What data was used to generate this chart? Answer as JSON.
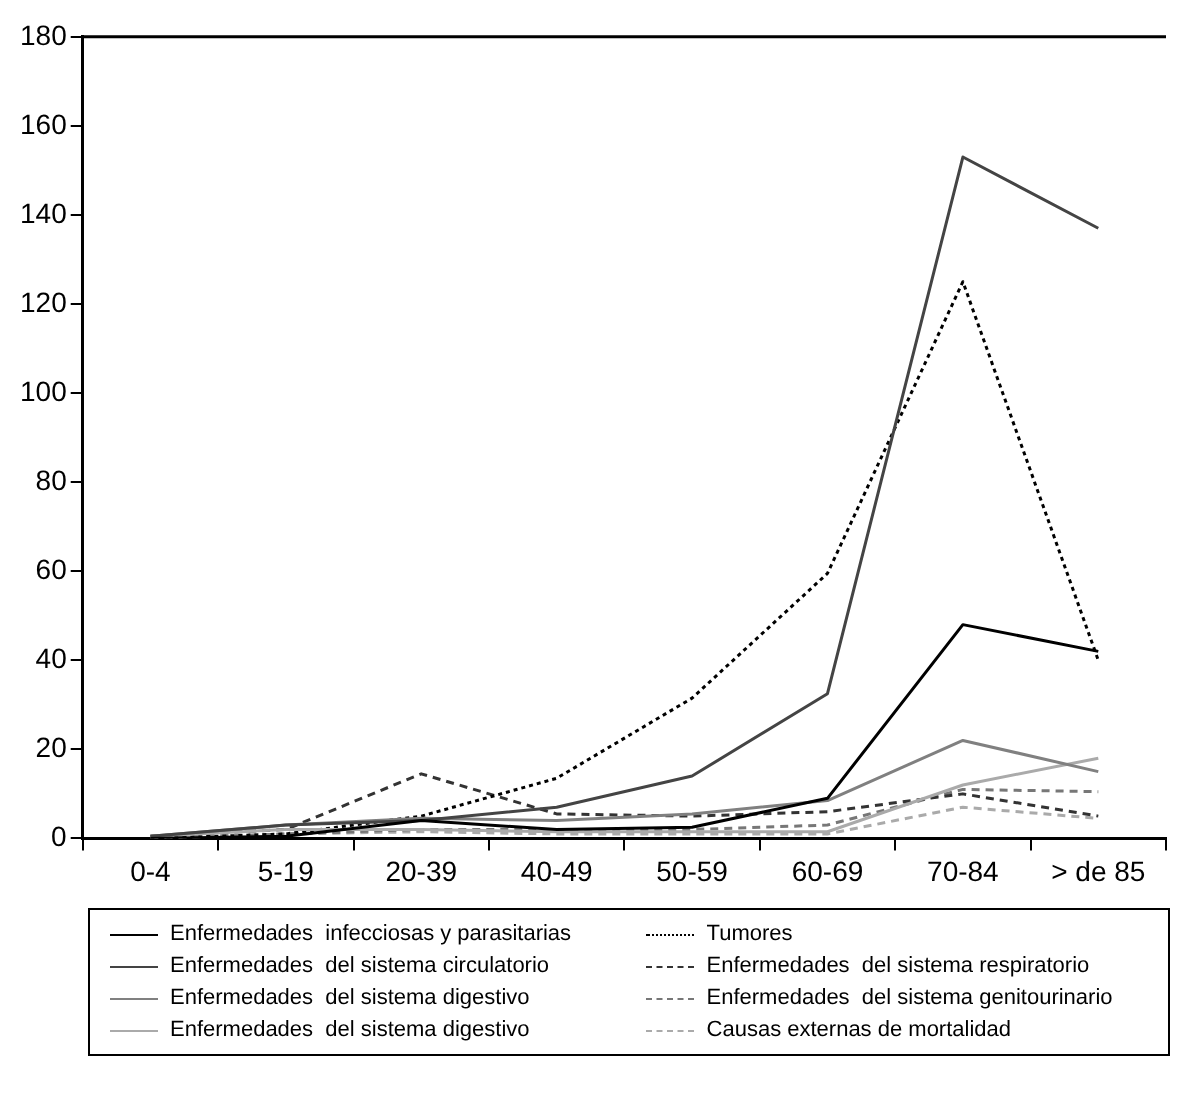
{
  "chart_data": {
    "type": "line",
    "categories": [
      "0-4",
      "5-19",
      "20-39",
      "40-49",
      "50-59",
      "60-69",
      "70-84",
      "> de 85"
    ],
    "ylim": [
      0,
      180
    ],
    "yticks": [
      0,
      20,
      40,
      60,
      80,
      100,
      120,
      140,
      160,
      180
    ],
    "grid": false,
    "legend": "bottom",
    "marker": "none",
    "series": [
      {
        "name": "Enfermedades  infecciosas y parasitarias",
        "color": "#000000",
        "line_style": "solid",
        "values": [
          0,
          0.5,
          4,
          2,
          2.5,
          9,
          48,
          42
        ]
      },
      {
        "name": "Enfermedades  del sistema circulatorio",
        "color": "#444444",
        "line_style": "solid",
        "values": [
          0.5,
          3,
          4,
          7,
          14,
          32.5,
          153,
          137
        ]
      },
      {
        "name": "Enfermedades  del sistema digestivo",
        "color": "#808080",
        "line_style": "solid",
        "values": [
          0.5,
          3,
          4.5,
          4,
          5.5,
          8.5,
          22,
          15
        ]
      },
      {
        "name": "Enfermedades  del sistema digestivo",
        "color": "#aaaaaa",
        "line_style": "solid",
        "values": [
          0.5,
          2,
          2,
          1.5,
          1.5,
          1.5,
          12,
          18
        ]
      },
      {
        "name": "Tumores",
        "color": "#000000",
        "line_style": "dotted",
        "values": [
          0,
          1,
          5,
          13.5,
          31.5,
          59.5,
          125,
          40
        ]
      },
      {
        "name": "Enfermedades  del sistema respiratorio",
        "color": "#333333",
        "line_style": "dashed",
        "values": [
          0.5,
          2,
          14.5,
          5.5,
          5,
          6,
          10,
          5
        ]
      },
      {
        "name": "Enfermedades  del sistema genitourinario",
        "color": "#777777",
        "line_style": "dashed",
        "values": [
          0,
          1,
          2,
          2,
          2,
          3,
          11,
          10.5
        ]
      },
      {
        "name": "Causas externas de mortalidad",
        "color": "#aaaaaa",
        "line_style": "dashed",
        "values": [
          0,
          1,
          1.5,
          1,
          1,
          1,
          7,
          4.5
        ]
      }
    ]
  }
}
